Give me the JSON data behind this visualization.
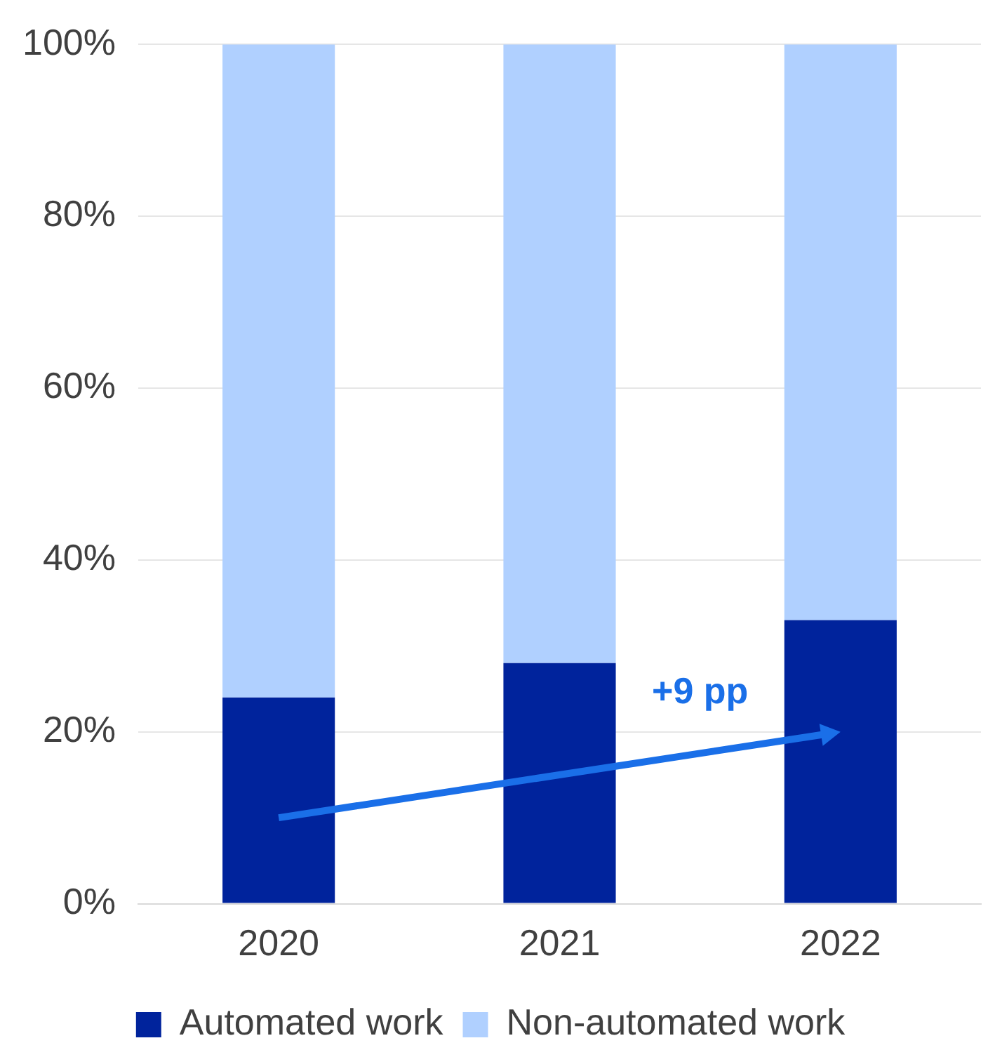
{
  "chart_data": {
    "type": "bar",
    "stacked": true,
    "categories": [
      "2020",
      "2021",
      "2022"
    ],
    "series": [
      {
        "name": "Automated work",
        "color": "#00239c",
        "values": [
          24,
          28,
          33
        ]
      },
      {
        "name": "Non-automated work",
        "color": "#b0d0ff",
        "values": [
          76,
          72,
          67
        ]
      }
    ],
    "ylim": [
      0,
      100
    ],
    "yticks": [
      {
        "value": 0,
        "label": "0%"
      },
      {
        "value": 20,
        "label": "20%"
      },
      {
        "value": 40,
        "label": "40%"
      },
      {
        "value": 60,
        "label": "60%"
      },
      {
        "value": 80,
        "label": "80%"
      },
      {
        "value": 100,
        "label": "100%"
      }
    ],
    "grid": "y",
    "legend": "bottom",
    "annotations": [
      "+9 pp"
    ]
  }
}
